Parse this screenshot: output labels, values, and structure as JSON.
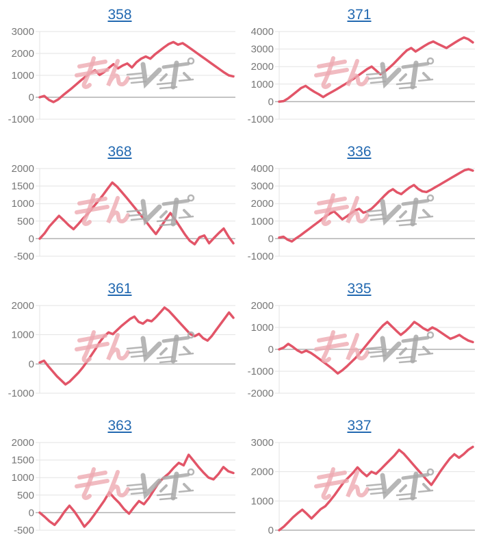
{
  "page": {
    "background": "#ffffff",
    "layout": "2x4 grid of mini line charts"
  },
  "style": {
    "line_color": "#e25568",
    "title_color": "#2168b0",
    "tick_color": "#777777",
    "grid_color": "#e3e3e3",
    "baseline_color": "#b0b0b0",
    "watermark_pink": "#eeaab2",
    "watermark_gray": "#a9a9a9"
  },
  "watermark": {
    "text": "みんレポ"
  },
  "chart_data": [
    {
      "type": "line",
      "title": "358",
      "xlabel": "",
      "ylabel": "",
      "legend": "none",
      "grid": "horizontal",
      "ylim": [
        -1000,
        3000
      ],
      "yticks": [
        3000,
        2000,
        1000,
        0,
        -1000
      ],
      "values": [
        0,
        60,
        -120,
        -220,
        -100,
        80,
        250,
        420,
        600,
        780,
        950,
        1120,
        1230,
        1020,
        1150,
        1340,
        1510,
        1320,
        1450,
        1540,
        1360,
        1600,
        1760,
        1860,
        1760,
        1960,
        2120,
        2280,
        2430,
        2520,
        2400,
        2470,
        2330,
        2180,
        2030,
        1880,
        1730,
        1580,
        1430,
        1280,
        1130,
        1000,
        950
      ]
    },
    {
      "type": "line",
      "title": "371",
      "xlabel": "",
      "ylabel": "",
      "legend": "none",
      "grid": "horizontal",
      "ylim": [
        -1000,
        4000
      ],
      "yticks": [
        4000,
        3000,
        2000,
        1000,
        0,
        -1000
      ],
      "values": [
        0,
        30,
        180,
        380,
        580,
        780,
        900,
        720,
        560,
        420,
        260,
        420,
        560,
        700,
        850,
        1000,
        1160,
        1320,
        1500,
        1680,
        1860,
        2000,
        1780,
        1560,
        1720,
        1930,
        2160,
        2420,
        2680,
        2920,
        3060,
        2860,
        3020,
        3180,
        3330,
        3430,
        3300,
        3180,
        3060,
        3220,
        3380,
        3530,
        3660,
        3560,
        3380
      ]
    },
    {
      "type": "line",
      "title": "368",
      "xlabel": "",
      "ylabel": "",
      "legend": "none",
      "grid": "horizontal",
      "ylim": [
        -500,
        2000
      ],
      "yticks": [
        2000,
        1500,
        1000,
        500,
        0,
        -500
      ],
      "values": [
        0,
        150,
        350,
        500,
        650,
        520,
        380,
        270,
        420,
        580,
        720,
        890,
        1060,
        1230,
        1420,
        1600,
        1480,
        1320,
        1160,
        990,
        820,
        650,
        480,
        300,
        130,
        330,
        540,
        730,
        540,
        330,
        120,
        -60,
        -160,
        40,
        90,
        -130,
        20,
        160,
        290,
        60,
        -130
      ]
    },
    {
      "type": "line",
      "title": "336",
      "xlabel": "",
      "ylabel": "",
      "legend": "none",
      "grid": "horizontal",
      "ylim": [
        -1000,
        4000
      ],
      "yticks": [
        4000,
        3000,
        2000,
        1000,
        0,
        -1000
      ],
      "values": [
        60,
        110,
        -60,
        -160,
        20,
        180,
        360,
        540,
        720,
        900,
        1080,
        1260,
        1420,
        1560,
        1340,
        1100,
        1260,
        1440,
        1600,
        1700,
        1480,
        1560,
        1720,
        1950,
        2200,
        2450,
        2680,
        2820,
        2640,
        2540,
        2740,
        2920,
        3060,
        2840,
        2700,
        2660,
        2780,
        2920,
        3060,
        3200,
        3340,
        3480,
        3620,
        3760,
        3900,
        3960,
        3880
      ]
    },
    {
      "type": "line",
      "title": "361",
      "xlabel": "",
      "ylabel": "",
      "legend": "none",
      "grid": "horizontal",
      "ylim": [
        -1000,
        2000
      ],
      "yticks": [
        2000,
        1000,
        0,
        -1000
      ],
      "values": [
        50,
        110,
        -80,
        -250,
        -420,
        -560,
        -700,
        -600,
        -450,
        -300,
        -120,
        80,
        300,
        520,
        760,
        950,
        1080,
        1020,
        1160,
        1300,
        1420,
        1540,
        1620,
        1440,
        1380,
        1500,
        1460,
        1600,
        1760,
        1930,
        1820,
        1660,
        1500,
        1340,
        1180,
        1020,
        950,
        1030,
        880,
        800,
        960,
        1160,
        1360,
        1560,
        1760,
        1580
      ]
    },
    {
      "type": "line",
      "title": "335",
      "xlabel": "",
      "ylabel": "",
      "legend": "none",
      "grid": "horizontal",
      "ylim": [
        -2000,
        2000
      ],
      "yticks": [
        2000,
        1000,
        0,
        -1000,
        -2000
      ],
      "values": [
        0,
        80,
        250,
        120,
        -40,
        -150,
        -60,
        -160,
        -300,
        -450,
        -600,
        -760,
        -920,
        -1100,
        -960,
        -780,
        -580,
        -380,
        -150,
        100,
        350,
        600,
        850,
        1080,
        1250,
        1050,
        850,
        660,
        820,
        1020,
        1250,
        1120,
        960,
        860,
        1000,
        900,
        760,
        620,
        480,
        560,
        660,
        520,
        400,
        330
      ]
    },
    {
      "type": "line",
      "title": "363",
      "xlabel": "",
      "ylabel": "",
      "legend": "none",
      "grid": "horizontal",
      "ylim": [
        -500,
        2000
      ],
      "yticks": [
        2000,
        1500,
        1000,
        500,
        0,
        -500
      ],
      "values": [
        0,
        -120,
        -250,
        -350,
        -180,
        30,
        200,
        30,
        -180,
        -400,
        -250,
        -60,
        140,
        340,
        580,
        420,
        280,
        100,
        -30,
        160,
        330,
        240,
        420,
        640,
        860,
        1000,
        1120,
        1280,
        1420,
        1350,
        1650,
        1480,
        1300,
        1140,
        1000,
        950,
        1100,
        1300,
        1180,
        1130
      ]
    },
    {
      "type": "line",
      "title": "337",
      "xlabel": "",
      "ylabel": "",
      "legend": "none",
      "grid": "horizontal",
      "ylim": [
        0,
        3000
      ],
      "yticks": [
        3000,
        2000,
        1000,
        0
      ],
      "values": [
        0,
        120,
        280,
        440,
        580,
        700,
        560,
        400,
        560,
        720,
        820,
        1000,
        1200,
        1420,
        1640,
        1800,
        1960,
        2150,
        1980,
        1850,
        2000,
        1930,
        2080,
        2240,
        2400,
        2560,
        2750,
        2620,
        2440,
        2260,
        2080,
        1900,
        1720,
        1550,
        1780,
        2020,
        2240,
        2450,
        2600,
        2480,
        2600,
        2750,
        2850
      ]
    }
  ]
}
